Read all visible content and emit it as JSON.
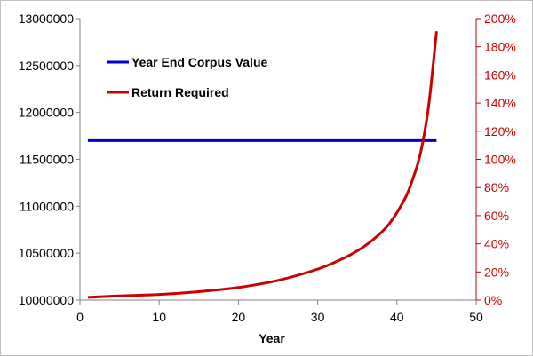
{
  "chart_data": {
    "type": "line",
    "title": "",
    "xlabel": "Year",
    "ylabel_left": "",
    "ylabel_right": "",
    "xlim": [
      0,
      50
    ],
    "x_ticks": [
      0,
      10,
      20,
      30,
      40,
      50
    ],
    "ylim_left": [
      10000000,
      13000000
    ],
    "y_ticks_left": [
      10000000,
      10500000,
      11000000,
      11500000,
      12000000,
      12500000,
      13000000
    ],
    "y_ticks_left_labels": [
      "10000000",
      "10500000",
      "11000000",
      "11500000",
      "12000000",
      "12500000",
      "13000000"
    ],
    "ylim_right": [
      0,
      200
    ],
    "y_ticks_right": [
      0,
      20,
      40,
      60,
      80,
      100,
      120,
      140,
      160,
      180,
      200
    ],
    "y_ticks_right_labels": [
      "0%",
      "20%",
      "40%",
      "60%",
      "80%",
      "100%",
      "120%",
      "140%",
      "160%",
      "180%",
      "200%"
    ],
    "grid": false,
    "legend_position": "top-left",
    "series": [
      {
        "name": "Year End Corpus Value",
        "axis": "left",
        "color": "#0000cc",
        "x": [
          1,
          45
        ],
        "y": [
          11700000,
          11700000
        ]
      },
      {
        "name": "Return Required",
        "axis": "right",
        "color": "#cc0000",
        "x": [
          1,
          5,
          10,
          15,
          20,
          25,
          30,
          33,
          35,
          37,
          39,
          41,
          42,
          43,
          44,
          45
        ],
        "y": [
          2,
          3,
          4,
          6,
          9,
          14,
          22,
          29,
          35,
          43,
          54,
          72,
          86,
          105,
          138,
          191
        ]
      }
    ]
  }
}
